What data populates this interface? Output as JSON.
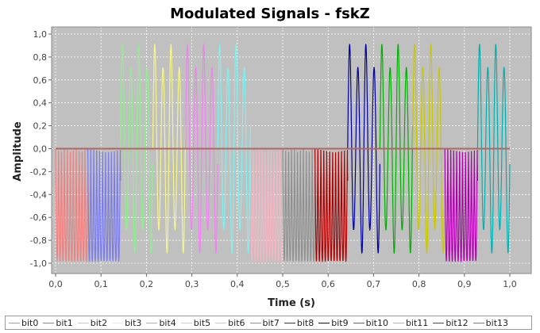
{
  "chart_data": {
    "type": "line",
    "title": "Modulated Signals - fskZ",
    "xlabel": "Time (s)",
    "ylabel": "Amplitude",
    "xlim": [
      0.0,
      1.0
    ],
    "ylim": [
      -1.0,
      1.0
    ],
    "x_ticks": [
      "0,0",
      "0,1",
      "0,2",
      "0,3",
      "0,4",
      "0,5",
      "0,6",
      "0,7",
      "0,8",
      "0,9",
      "1,0"
    ],
    "y_ticks": [
      "1,0",
      "0,8",
      "0,6",
      "0,4",
      "0,2",
      "0,0",
      "-0,2",
      "-0,4",
      "-0,6",
      "-0,8",
      "-1,0"
    ],
    "grid": true,
    "legend_position": "bottom",
    "background": "#c0c0c0",
    "series": [
      {
        "name": "bit0",
        "color": "#f08080",
        "t_start": 0.0,
        "t_end": 0.071,
        "bit": 0
      },
      {
        "name": "bit1",
        "color": "#7b7bf0",
        "t_start": 0.071,
        "t_end": 0.143,
        "bit": 0
      },
      {
        "name": "bit2",
        "color": "#90ee90",
        "t_start": 0.143,
        "t_end": 0.214,
        "bit": 1
      },
      {
        "name": "bit3",
        "color": "#f5f58a",
        "t_start": 0.214,
        "t_end": 0.286,
        "bit": 1
      },
      {
        "name": "bit4",
        "color": "#ee82ee",
        "t_start": 0.286,
        "t_end": 0.357,
        "bit": 1
      },
      {
        "name": "bit5",
        "color": "#80f0f0",
        "t_start": 0.357,
        "t_end": 0.429,
        "bit": 1
      },
      {
        "name": "bit6",
        "color": "#f4b6c2",
        "t_start": 0.429,
        "t_end": 0.5,
        "bit": 0
      },
      {
        "name": "bit7",
        "color": "#909090",
        "t_start": 0.5,
        "t_end": 0.571,
        "bit": 0
      },
      {
        "name": "bit8",
        "color": "#b00000",
        "t_start": 0.571,
        "t_end": 0.643,
        "bit": 0
      },
      {
        "name": "bit9",
        "color": "#00009a",
        "t_start": 0.643,
        "t_end": 0.714,
        "bit": 1
      },
      {
        "name": "bit10",
        "color": "#00b000",
        "t_start": 0.714,
        "t_end": 0.786,
        "bit": 1
      },
      {
        "name": "bit11",
        "color": "#c8c800",
        "t_start": 0.786,
        "t_end": 0.857,
        "bit": 1
      },
      {
        "name": "bit12",
        "color": "#b000b0",
        "t_start": 0.857,
        "t_end": 0.929,
        "bit": 0
      },
      {
        "name": "bit13",
        "color": "#00b0b0",
        "t_start": 0.929,
        "t_end": 1.0,
        "bit": 1
      }
    ]
  }
}
